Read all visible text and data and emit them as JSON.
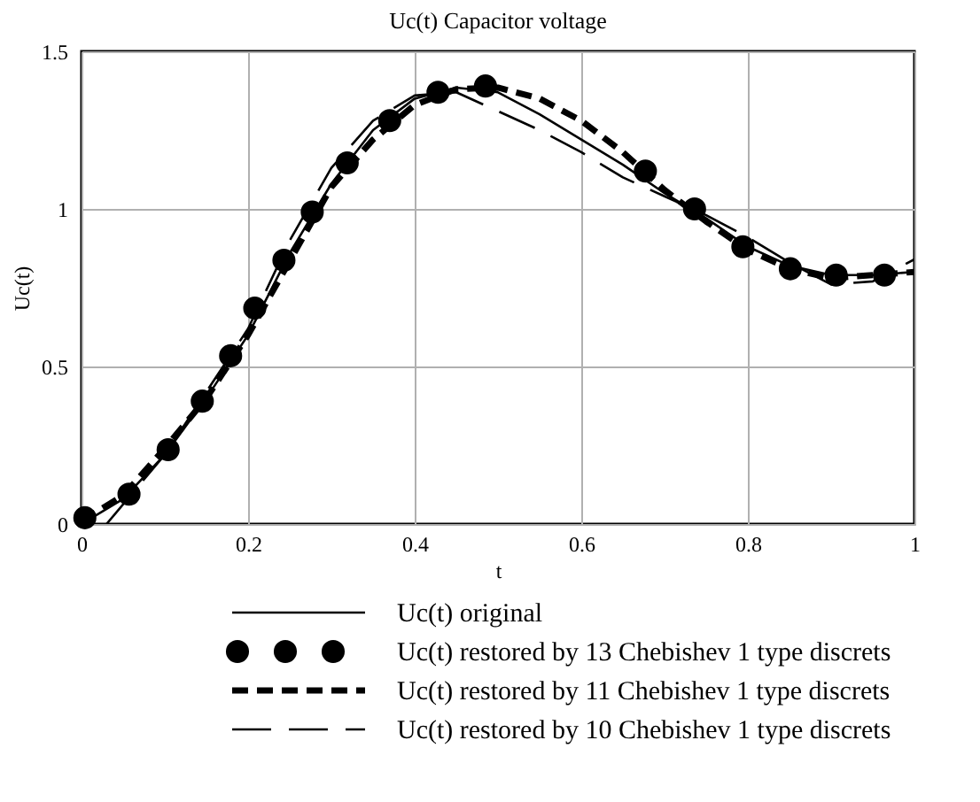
{
  "chart_data": {
    "type": "line",
    "title": "Uc(t) Capacitor voltage",
    "xlabel": "t",
    "ylabel": "Uc(t)",
    "xlim": [
      0,
      1
    ],
    "ylim": [
      0,
      1.5
    ],
    "xticks": [
      0,
      0.2,
      0.4,
      0.6,
      0.8,
      1
    ],
    "yticks": [
      0,
      0.5,
      1,
      1.5
    ],
    "grid": true,
    "legend": "bottom",
    "series": [
      {
        "name": "Uc(t) original",
        "color": "#000000",
        "line_style": "solid",
        "x": [
          0,
          0.05,
          0.1,
          0.15,
          0.2,
          0.25,
          0.3,
          0.35,
          0.4,
          0.45,
          0.5,
          0.55,
          0.6,
          0.65,
          0.7,
          0.75,
          0.8,
          0.85,
          0.9,
          0.95,
          1.0
        ],
        "values": [
          0,
          0.08,
          0.22,
          0.4,
          0.6,
          0.86,
          1.08,
          1.25,
          1.35,
          1.385,
          1.37,
          1.3,
          1.22,
          1.14,
          1.05,
          0.97,
          0.88,
          0.82,
          0.79,
          0.79,
          0.8
        ]
      },
      {
        "name": "Uc(t) restored by 13 Chebishev 1 type discrets",
        "color": "#000000",
        "type": "scatter",
        "marker": "circle",
        "x": [
          0.004,
          0.057,
          0.104,
          0.145,
          0.179,
          0.208,
          0.243,
          0.277,
          0.319,
          0.37,
          0.428,
          0.485,
          0.677,
          0.736,
          0.794,
          0.851,
          0.906,
          0.964
        ],
        "values": [
          0.02,
          0.095,
          0.236,
          0.39,
          0.534,
          0.685,
          0.837,
          0.99,
          1.146,
          1.28,
          1.37,
          1.39,
          1.12,
          1.0,
          0.88,
          0.81,
          0.79,
          0.79
        ]
      },
      {
        "name": "Uc(t) restored by 11 Chebishev 1 type discrets",
        "color": "#000000",
        "line_style": "dashed",
        "x": [
          0,
          0.05,
          0.1,
          0.15,
          0.2,
          0.3,
          0.35,
          0.4,
          0.45,
          0.5,
          0.55,
          0.6,
          0.65,
          0.7,
          0.75,
          0.8,
          0.85,
          0.9,
          0.95,
          1.0
        ],
        "values": [
          0.01,
          0.09,
          0.24,
          0.4,
          0.6,
          1.07,
          1.22,
          1.33,
          1.38,
          1.385,
          1.35,
          1.28,
          1.18,
          1.06,
          0.96,
          0.87,
          0.81,
          0.78,
          0.79,
          0.8
        ]
      },
      {
        "name": "Uc(t) restored by 10 Chebishev 1 type discrets",
        "color": "#000000",
        "line_style": "longdash",
        "x": [
          0.03,
          0.1,
          0.2,
          0.25,
          0.3,
          0.35,
          0.4,
          0.45,
          0.5,
          0.55,
          0.6,
          0.65,
          0.7,
          0.75,
          0.8,
          0.85,
          0.9,
          0.95,
          1.0
        ],
        "values": [
          0.0,
          0.22,
          0.62,
          0.9,
          1.13,
          1.28,
          1.36,
          1.37,
          1.31,
          1.25,
          1.18,
          1.1,
          1.04,
          0.98,
          0.91,
          0.83,
          0.76,
          0.77,
          0.84
        ]
      }
    ]
  }
}
